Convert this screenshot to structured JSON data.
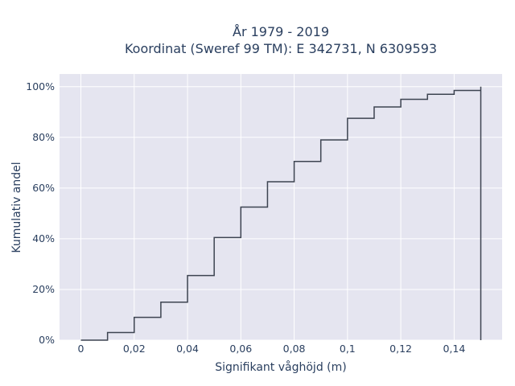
{
  "chart_data": {
    "type": "line",
    "title_line1": "År 1979 - 2019",
    "title_line2": "Koordinat (Sweref 99 TM): E 342731, N 6309593",
    "xlabel": "Signifikant våghöjd (m)",
    "ylabel": "Kumulativ andel",
    "xlim": [
      -0.008,
      0.158
    ],
    "ylim": [
      0,
      1.05
    ],
    "x_ticks": [
      0,
      0.02,
      0.04,
      0.06,
      0.08,
      0.1,
      0.12,
      0.14
    ],
    "x_tick_labels": [
      "0",
      "0,02",
      "0,04",
      "0,06",
      "0,08",
      "0,1",
      "0,12",
      "0,14"
    ],
    "y_ticks": [
      0,
      0.2,
      0.4,
      0.6,
      0.8,
      1.0
    ],
    "y_tick_labels": [
      "0%",
      "20%",
      "40%",
      "60%",
      "80%",
      "100%"
    ],
    "grid": true,
    "line_style": "hv",
    "colors": {
      "plot_bg": "#e5e5f0",
      "grid": "#ffffff",
      "line": "#3d4451",
      "text": "#2a3f5f"
    },
    "series": [
      {
        "x": [
          0,
          0.01,
          0.02,
          0.03,
          0.04,
          0.05,
          0.06,
          0.07,
          0.08,
          0.09,
          0.1,
          0.11,
          0.12,
          0.13,
          0.14,
          0.15,
          0.15
        ],
        "y": [
          0,
          0.03,
          0.09,
          0.15,
          0.255,
          0.405,
          0.525,
          0.625,
          0.705,
          0.79,
          0.875,
          0.92,
          0.95,
          0.97,
          0.985,
          0.985,
          1.0
        ]
      }
    ]
  }
}
